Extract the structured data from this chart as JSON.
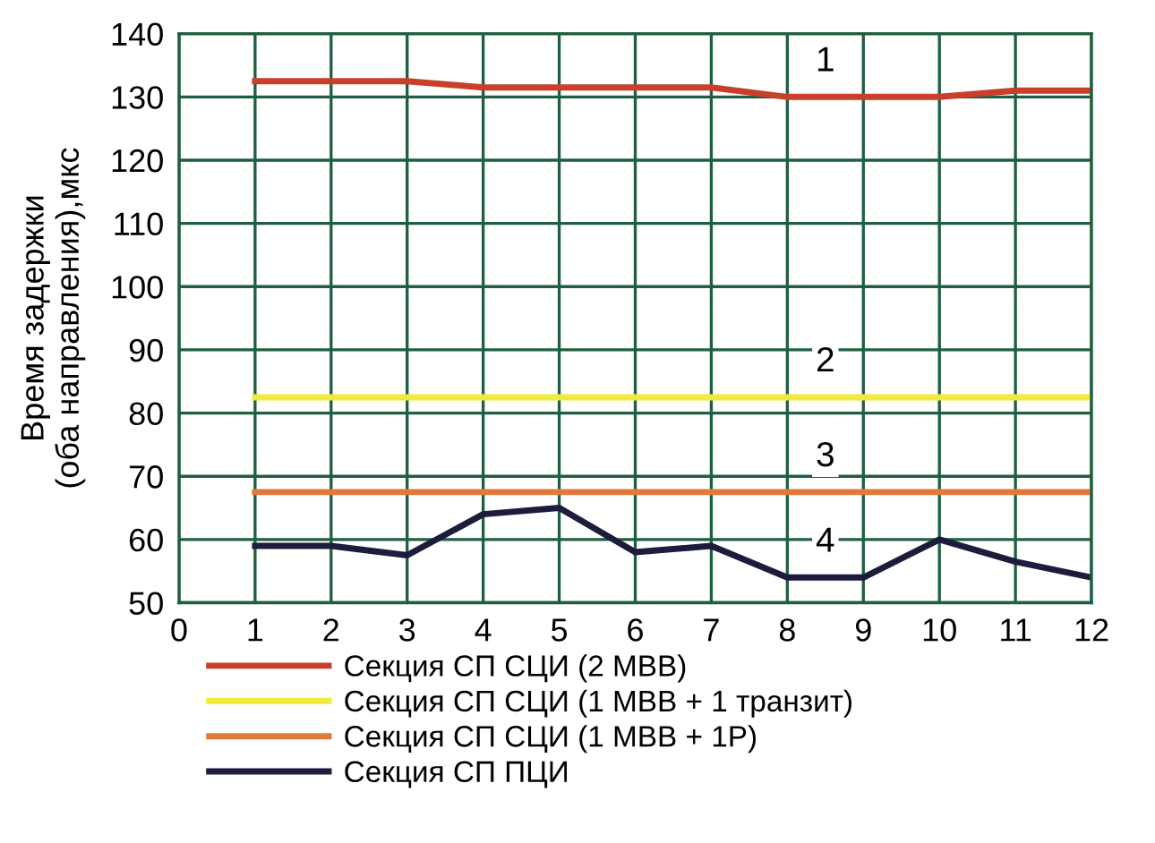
{
  "chart_data": {
    "type": "line",
    "ylabel": "Время задержки\n(оба направления),мкс",
    "x": [
      1,
      2,
      3,
      4,
      5,
      6,
      7,
      8,
      9,
      10,
      11,
      12
    ],
    "series": [
      {
        "name": "Секция СП СЦИ (2 МВВ)",
        "color": "#c8402c",
        "values": [
          132.5,
          132.5,
          132.5,
          131.5,
          131.5,
          131.5,
          131.5,
          130,
          130,
          130,
          131,
          131
        ]
      },
      {
        "name": "Секция СП СЦИ (1 МВВ + 1 транзит)",
        "color": "#f0ea3c",
        "values": [
          82.5,
          82.5,
          82.5,
          82.5,
          82.5,
          82.5,
          82.5,
          82.5,
          82.5,
          82.5,
          82.5,
          82.5
        ]
      },
      {
        "name": "Секция СП СЦИ (1 МВВ + 1Р)",
        "color": "#e07a3c",
        "values": [
          67.5,
          67.5,
          67.5,
          67.5,
          67.5,
          67.5,
          67.5,
          67.5,
          67.5,
          67.5,
          67.5,
          67.5
        ]
      },
      {
        "name": "Секция СП ПЦИ",
        "color": "#1c1c3c",
        "values": [
          59,
          59,
          57.5,
          64,
          65,
          58,
          59,
          54,
          54,
          60,
          56.5,
          54
        ]
      }
    ],
    "annotations": [
      "1",
      "2",
      "3",
      "4"
    ],
    "xlim": [
      0,
      12
    ],
    "ylim": [
      50,
      140
    ],
    "xticks": [
      0,
      1,
      2,
      3,
      4,
      5,
      6,
      7,
      8,
      9,
      10,
      11,
      12
    ],
    "yticks": [
      50,
      60,
      70,
      80,
      90,
      100,
      110,
      120,
      130,
      140
    ],
    "grid": true,
    "legend": "bottom",
    "marker": "none",
    "line_style": "solid"
  }
}
